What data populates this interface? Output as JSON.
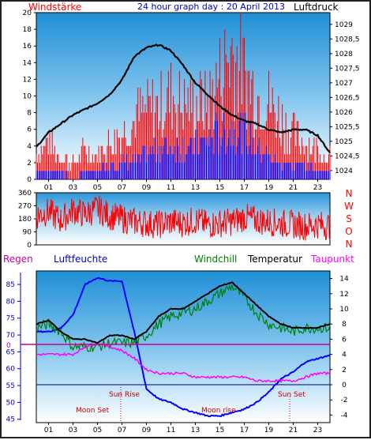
{
  "header": {
    "left_label": "Windstärke",
    "title": "24 hour graph day : 20 April 2013",
    "right_label": "Luftdruck"
  },
  "legend_row": {
    "regen": "Regen",
    "luftfeuchte": "Luftfeuchte",
    "windchill": "Windchill",
    "temperatur": "Temperatur",
    "taupunkt": "Taupunkt"
  },
  "annotations": {
    "sun_rise": "Sun Rise",
    "sun_set": "Sun Set",
    "moon_set": "Moon Set",
    "moon_rise": "Moon rise",
    "regen_zero": "0"
  },
  "colors": {
    "wind_speed": "#ff0000",
    "wind_avg": "#0000ff",
    "pressure": "#000000",
    "wind_dir": "#ff0000",
    "humidity": "#0000ff",
    "windchill": "#008000",
    "temperature": "#000000",
    "dewpoint": "#ff00ff",
    "rain": "#cc0099",
    "sky_top": "#1f8fd6",
    "sky_bottom": "#ffffff"
  },
  "chart_data": [
    {
      "type": "line",
      "name": "wind_pressure",
      "ylabel_left": "Windstärke",
      "ylabel_right": "Luftdruck",
      "x_ticks": [
        "01",
        "03",
        "05",
        "07",
        "09",
        "11",
        "13",
        "15",
        "17",
        "19",
        "21",
        "23"
      ],
      "ylim_left": [
        0,
        20
      ],
      "yticks_left": [
        "0",
        "2",
        "4",
        "6",
        "8",
        "10",
        "12",
        "14",
        "16",
        "18",
        "20"
      ],
      "ylim_right": [
        1023.7,
        1029.4
      ],
      "yticks_right": [
        "1024",
        "1024,5",
        "1025",
        "1025,5",
        "1026",
        "1026,5",
        "1027",
        "1027,5",
        "1028",
        "1028,5",
        "1029"
      ],
      "hours": [
        0,
        1,
        2,
        3,
        4,
        5,
        6,
        7,
        8,
        9,
        10,
        11,
        12,
        13,
        14,
        15,
        16,
        17,
        18,
        19,
        20,
        21,
        22,
        23,
        24
      ],
      "pressure": [
        1024.8,
        1025.3,
        1025.6,
        1025.9,
        1026.1,
        1026.3,
        1026.6,
        1027.1,
        1027.9,
        1028.2,
        1028.3,
        1028.1,
        1027.6,
        1027.0,
        1026.6,
        1026.2,
        1025.9,
        1025.7,
        1025.6,
        1025.4,
        1025.3,
        1025.4,
        1025.4,
        1025.2,
        1024.6
      ],
      "wind_gust": [
        3,
        5,
        3,
        2,
        4,
        3,
        5,
        6,
        8,
        9,
        10,
        11,
        10,
        10,
        10,
        14,
        17,
        14,
        11,
        10,
        8,
        6,
        5,
        4,
        3
      ],
      "wind_avg": [
        1,
        1,
        1,
        0,
        1,
        1,
        2,
        2,
        2,
        3,
        4,
        4,
        4,
        4,
        5,
        6,
        6,
        6,
        4,
        3,
        2,
        2,
        2,
        1,
        1
      ]
    },
    {
      "type": "line",
      "name": "wind_direction",
      "ylabel_right": [
        "N",
        "W",
        "S",
        "O",
        "N"
      ],
      "x_ticks": [],
      "ylim": [
        0,
        360
      ],
      "yticks": [
        "0",
        "90",
        "180",
        "270",
        "360"
      ],
      "hours": [
        0,
        1,
        2,
        3,
        4,
        5,
        6,
        7,
        8,
        9,
        10,
        11,
        12,
        13,
        14,
        15,
        16,
        17,
        18,
        19,
        20,
        21,
        22,
        23,
        24
      ],
      "direction": [
        200,
        230,
        170,
        240,
        210,
        250,
        200,
        180,
        160,
        150,
        140,
        160,
        150,
        170,
        140,
        150,
        160,
        190,
        170,
        160,
        150,
        140,
        130,
        140,
        130
      ]
    },
    {
      "type": "line",
      "name": "temperature_humidity",
      "x_ticks": [
        "01",
        "03",
        "05",
        "07",
        "09",
        "11",
        "13",
        "15",
        "17",
        "19",
        "21",
        "23"
      ],
      "ylim_left": [
        44,
        89
      ],
      "yticks_left": [
        "45",
        "50",
        "55",
        "60",
        "65",
        "70",
        "75",
        "80",
        "85"
      ],
      "ylim_right": [
        -5,
        15
      ],
      "yticks_right": [
        "-4",
        "-2",
        "0",
        "2",
        "4",
        "6",
        "8",
        "10",
        "12",
        "14"
      ],
      "hours": [
        0,
        1,
        2,
        3,
        4,
        5,
        6,
        7,
        8,
        9,
        10,
        11,
        12,
        13,
        14,
        15,
        16,
        17,
        18,
        19,
        20,
        21,
        22,
        23,
        24
      ],
      "series": [
        {
          "name": "Luftfeuchte",
          "values": [
            71,
            71,
            72,
            76,
            85,
            87,
            86,
            86,
            71,
            54,
            51,
            50,
            48,
            47,
            46,
            46,
            47,
            48,
            50,
            53,
            57,
            59,
            62,
            63,
            64
          ]
        },
        {
          "name": "Temperatur",
          "values": [
            8,
            8.5,
            7,
            6,
            6,
            5.5,
            6.5,
            6.5,
            6,
            7,
            9,
            10,
            10,
            11,
            12,
            13,
            13.5,
            12,
            10.5,
            9,
            8,
            7.5,
            7.5,
            7.5,
            8
          ]
        },
        {
          "name": "Windchill",
          "values": [
            7.5,
            8,
            7,
            5,
            5,
            5,
            5.5,
            5.5,
            5.5,
            6.5,
            8,
            9,
            9.5,
            10,
            11,
            12,
            13,
            11.5,
            9.5,
            8,
            7.5,
            7,
            7.5,
            7.5,
            7.5
          ]
        },
        {
          "name": "Taupunkt",
          "values": [
            4,
            4,
            4,
            4,
            5,
            5.5,
            5,
            4.5,
            3.5,
            2,
            1.5,
            1.5,
            1.5,
            1,
            1,
            1,
            1,
            1,
            0.5,
            0.5,
            0.5,
            0.5,
            1,
            1.5,
            1.5
          ]
        }
      ],
      "rain_zero_label": "0"
    }
  ]
}
